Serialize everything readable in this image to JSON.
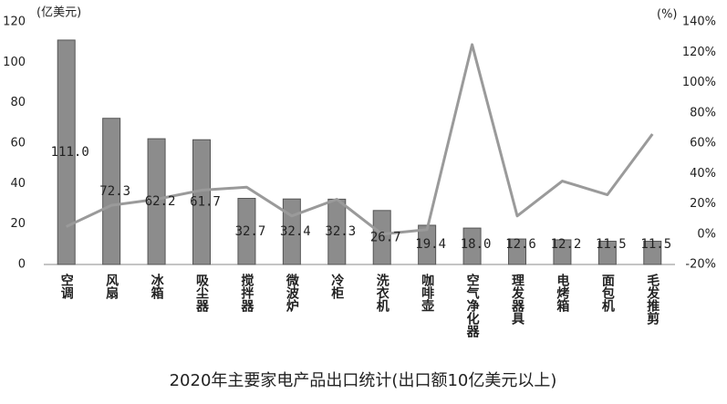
{
  "chart_data": {
    "type": "bar-line",
    "title": "2020年主要家电产品出口统计(出口额10亿美元以上)",
    "y_label": "(亿美元)",
    "y2_label": "(%)",
    "categories": [
      "空调",
      "风扇",
      "冰箱",
      "吸尘器",
      "搅拌器",
      "微波炉",
      "冷柜",
      "洗衣机",
      "咖啡壶",
      "空气净化器",
      "理发器具",
      "电烤箱",
      "面包机",
      "毛发推剪"
    ],
    "series": [
      {
        "type": "bar",
        "color": "#8c8c8c",
        "values": [
          111.0,
          72.3,
          62.2,
          61.7,
          32.7,
          32.4,
          32.3,
          26.7,
          19.4,
          18.0,
          12.6,
          12.2,
          11.5,
          11.5
        ],
        "value_labels": [
          "111.0",
          "72.3",
          "62.2",
          "61.7",
          "32.7",
          "32.4",
          "32.3",
          "26.7",
          "19.4",
          "18.0",
          "12.6",
          "12.2",
          "11.5",
          "11.5"
        ]
      },
      {
        "type": "line",
        "axis": "y2",
        "color": "#9a9a9a",
        "values": [
          5,
          19,
          23,
          29,
          31,
          12,
          23,
          0,
          3,
          125,
          12,
          35,
          26,
          66
        ]
      }
    ],
    "ylim": [
      0,
      120
    ],
    "yticks": [
      0,
      20,
      40,
      60,
      80,
      100,
      120
    ],
    "y2lim": [
      -20,
      140
    ],
    "y2ticks": [
      {
        "value": -20,
        "label": "-20%"
      },
      {
        "value": 0,
        "label": "0%"
      },
      {
        "value": 20,
        "label": "20%"
      },
      {
        "value": 40,
        "label": "40%"
      },
      {
        "value": 60,
        "label": "60%"
      },
      {
        "value": 80,
        "label": "80%"
      },
      {
        "value": 100,
        "label": "100%"
      },
      {
        "value": 120,
        "label": "120%"
      },
      {
        "value": 140,
        "label": "140%"
      }
    ]
  }
}
